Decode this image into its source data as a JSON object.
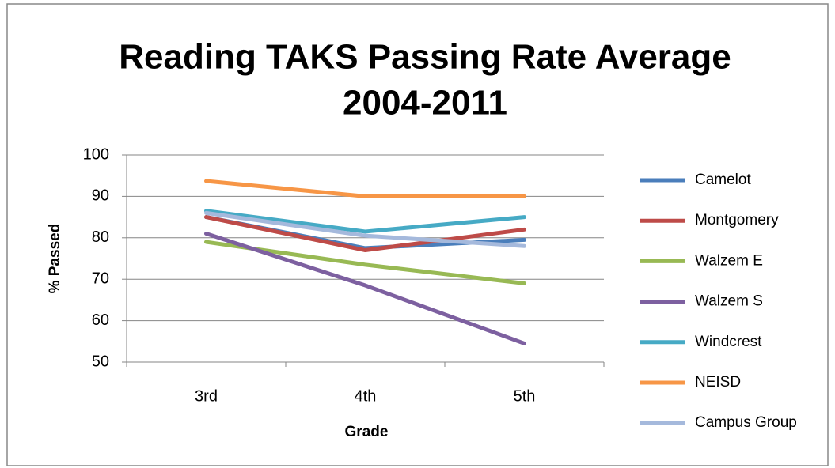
{
  "chart_data": {
    "type": "line",
    "title": [
      "Reading TAKS Passing Rate Average",
      "2004-2011"
    ],
    "xlabel": "Grade",
    "ylabel": "% Passed",
    "categories": [
      "3rd",
      "4th",
      "5th"
    ],
    "series": [
      {
        "name": "Camelot",
        "color": "#4a7ebb",
        "values": [
          85,
          77.5,
          79.5
        ]
      },
      {
        "name": "Montgomery",
        "color": "#be4b48",
        "values": [
          85,
          77,
          82
        ]
      },
      {
        "name": "Walzem E",
        "color": "#98b954",
        "values": [
          79,
          73.5,
          69
        ]
      },
      {
        "name": "Walzem S",
        "color": "#7d60a0",
        "values": [
          81,
          68.5,
          54.5
        ]
      },
      {
        "name": "Windcrest",
        "color": "#46aac5",
        "values": [
          86.5,
          81.5,
          85
        ]
      },
      {
        "name": "NEISD",
        "color": "#f79646",
        "values": [
          93.7,
          90,
          90
        ]
      },
      {
        "name": "Campus Group",
        "color": "#a5b9dc",
        "values": [
          86,
          80.5,
          78
        ]
      }
    ],
    "ylim": [
      50,
      100
    ],
    "yticks": [
      50,
      60,
      70,
      80,
      90,
      100
    ],
    "grid": true,
    "legend": "right"
  }
}
